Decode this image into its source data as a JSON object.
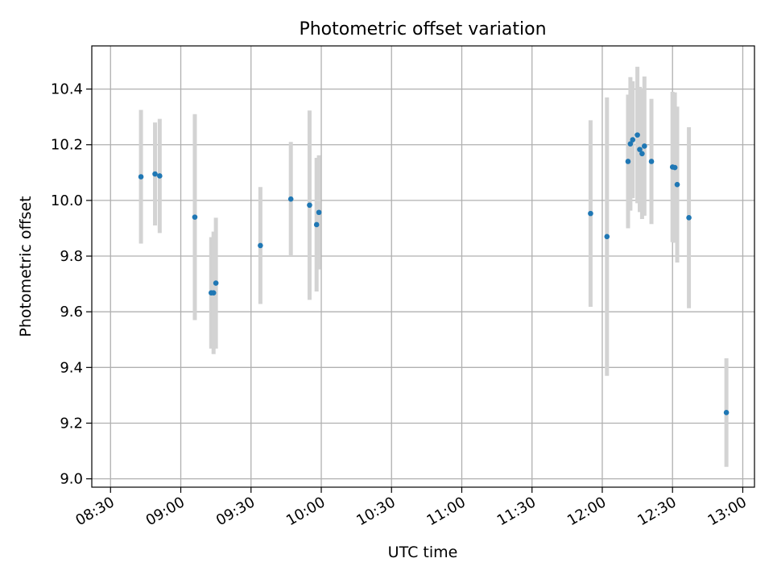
{
  "chart_data": {
    "type": "scatter",
    "title": "Photometric offset variation",
    "xlabel": "UTC time",
    "ylabel": "Photometric offset",
    "xlim": [
      "08:22",
      "13:05"
    ],
    "ylim": [
      8.97,
      10.555
    ],
    "grid": true,
    "x_ticks": [
      "08:30",
      "09:00",
      "09:30",
      "10:00",
      "10:30",
      "11:00",
      "11:30",
      "12:00",
      "12:30",
      "13:00"
    ],
    "y_ticks": [
      "9.0",
      "9.2",
      "9.4",
      "9.6",
      "9.8",
      "10.0",
      "10.2",
      "10.4"
    ],
    "colors": {
      "marker": "#1f77b4",
      "errorbar": "#d3d3d3",
      "grid": "#b0b0b0"
    },
    "series": [
      {
        "points": [
          {
            "x": "08:43",
            "y": 10.085,
            "err": 0.24
          },
          {
            "x": "08:49",
            "y": 10.095,
            "err": 0.185
          },
          {
            "x": "08:51",
            "y": 10.088,
            "err": 0.205
          },
          {
            "x": "09:06",
            "y": 9.94,
            "err": 0.37
          },
          {
            "x": "09:13",
            "y": 9.668,
            "err": 0.2
          },
          {
            "x": "09:14",
            "y": 9.668,
            "err": 0.22
          },
          {
            "x": "09:15",
            "y": 9.703,
            "err": 0.235
          },
          {
            "x": "09:34",
            "y": 9.838,
            "err": 0.21
          },
          {
            "x": "09:47",
            "y": 10.005,
            "err": 0.205
          },
          {
            "x": "09:55",
            "y": 9.983,
            "err": 0.34
          },
          {
            "x": "09:58",
            "y": 9.913,
            "err": 0.24
          },
          {
            "x": "09:59",
            "y": 9.957,
            "err": 0.205
          },
          {
            "x": "11:55",
            "y": 9.953,
            "err": 0.335
          },
          {
            "x": "12:02",
            "y": 9.87,
            "err": 0.5
          },
          {
            "x": "12:11",
            "y": 10.14,
            "err": 0.24
          },
          {
            "x": "12:12",
            "y": 10.203,
            "err": 0.24
          },
          {
            "x": "12:13",
            "y": 10.218,
            "err": 0.21
          },
          {
            "x": "12:15",
            "y": 10.235,
            "err": 0.245
          },
          {
            "x": "12:16",
            "y": 10.183,
            "err": 0.225
          },
          {
            "x": "12:17",
            "y": 10.168,
            "err": 0.235
          },
          {
            "x": "12:18",
            "y": 10.195,
            "err": 0.25
          },
          {
            "x": "12:21",
            "y": 10.14,
            "err": 0.225
          },
          {
            "x": "12:30",
            "y": 10.12,
            "err": 0.27
          },
          {
            "x": "12:31",
            "y": 10.118,
            "err": 0.27
          },
          {
            "x": "12:32",
            "y": 10.057,
            "err": 0.28
          },
          {
            "x": "12:37",
            "y": 9.938,
            "err": 0.325
          },
          {
            "x": "12:53",
            "y": 9.238,
            "err": 0.195
          }
        ]
      }
    ]
  }
}
